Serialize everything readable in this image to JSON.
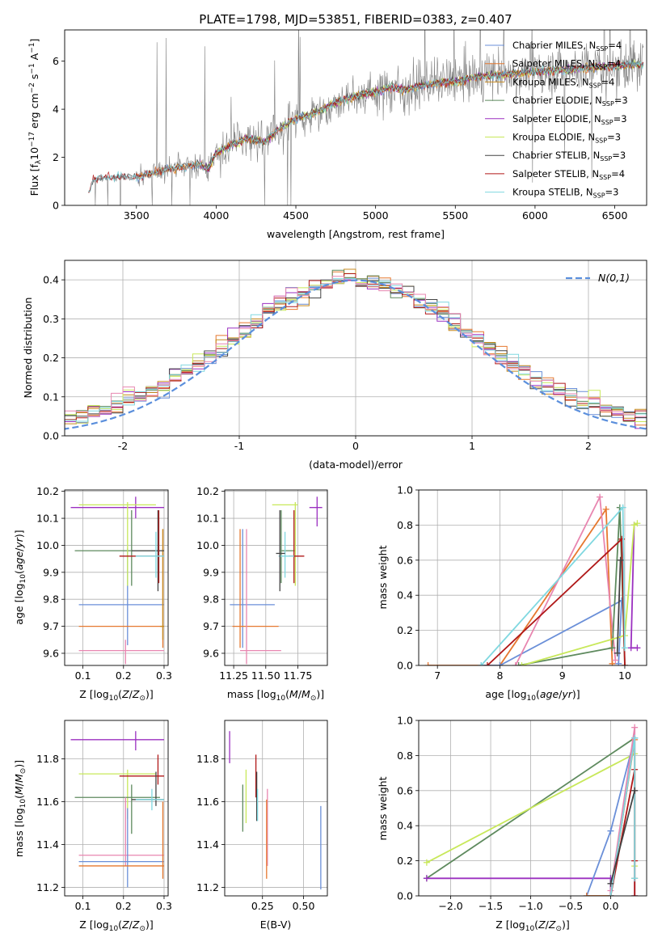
{
  "title": "PLATE=1798, MJD=53851, FIBERID=0383, z=0.407",
  "colors": {
    "chabrier_miles": "#6a8fd8",
    "salpeter_miles": "#e6782f",
    "kroupa_miles": "#c78a1f",
    "chabrier_elodie": "#5e8a5e",
    "salpeter_elodie": "#9b30c0",
    "kroupa_elodie": "#c8e85a",
    "chabrier_stelib": "#444444",
    "salpeter_stelib": "#b01818",
    "kroupa_stelib": "#80d8e0",
    "pink": "#e886b0",
    "data": "#808080",
    "normal": "#5b8fdc"
  },
  "legend_labels": {
    "chabrier_miles": "Chabrier MILES, N",
    "salpeter_miles": "Salpeter MILES, N",
    "kroupa_miles": "Kroupa MILES, N",
    "chabrier_elodie": "Chabrier ELODIE, N",
    "salpeter_elodie": "Salpeter ELODIE, N",
    "kroupa_elodie": "Kroupa ELODIE, N",
    "chabrier_stelib": "Chabrier STELIB, N",
    "salpeter_stelib": "Salpeter STELIB, N",
    "kroupa_stelib": "Kroupa STELIB, N",
    "sub": "SSP",
    "eq": "=",
    "n4": "4",
    "n3": "3",
    "normal": "N(0, 1)"
  },
  "chart_data": [
    {
      "id": "spectrum",
      "type": "line",
      "xlabel": "wavelength [Angstrom, rest frame]",
      "ylabel": "Flux [f",
      "ylabel_sub": "λ",
      "ylabel_rest": "10",
      "ylabel_exp": "−17",
      "ylabel_units": " erg cm",
      "ylabel_units2": " s",
      "ylabel_units3": " A",
      "xlim": [
        3050,
        6700
      ],
      "ylim": [
        0,
        7.3
      ],
      "xticks": [
        3500,
        4000,
        4500,
        5000,
        5500,
        6000,
        6500
      ],
      "yticks": [
        0,
        2,
        4,
        6
      ],
      "continuum": [
        [
          3200,
          0.5
        ],
        [
          3230,
          1.05
        ],
        [
          3300,
          1.15
        ],
        [
          3400,
          1.2
        ],
        [
          3500,
          1.15
        ],
        [
          3600,
          1.35
        ],
        [
          3700,
          1.5
        ],
        [
          3800,
          1.6
        ],
        [
          3900,
          1.7
        ],
        [
          3950,
          1.5
        ],
        [
          4000,
          2.2
        ],
        [
          4100,
          2.5
        ],
        [
          4200,
          2.8
        ],
        [
          4300,
          2.6
        ],
        [
          4400,
          3.2
        ],
        [
          4500,
          3.6
        ],
        [
          4600,
          3.8
        ],
        [
          4700,
          4.1
        ],
        [
          4800,
          4.4
        ],
        [
          4900,
          4.6
        ],
        [
          5000,
          4.7
        ],
        [
          5100,
          4.9
        ],
        [
          5200,
          4.8
        ],
        [
          5300,
          5.0
        ],
        [
          5400,
          5.1
        ],
        [
          5500,
          5.15
        ],
        [
          5600,
          5.3
        ],
        [
          5700,
          5.4
        ],
        [
          5800,
          5.45
        ],
        [
          5900,
          5.5
        ],
        [
          6000,
          5.55
        ],
        [
          6100,
          5.6
        ],
        [
          6200,
          5.65
        ],
        [
          6300,
          5.7
        ],
        [
          6400,
          5.75
        ],
        [
          6500,
          5.8
        ],
        [
          6600,
          5.85
        ]
      ]
    },
    {
      "id": "residuals",
      "type": "histogram",
      "xlabel": "(data-model)/error",
      "ylabel": "Normed distribution",
      "xlim": [
        -2.5,
        2.5
      ],
      "ylim": [
        0,
        0.45
      ],
      "xticks": [
        -2,
        -1,
        0,
        1,
        2
      ],
      "yticks": [
        0.0,
        0.1,
        0.2,
        0.3,
        0.4
      ],
      "bin_width": 0.1,
      "normal_label": "N(0,1)"
    },
    {
      "id": "Z_age",
      "type": "scatter",
      "xlabel": "Z [log",
      "ylabel": "age  [log",
      "xlim": [
        0.055,
        0.31
      ],
      "ylim": [
        9.555,
        10.205
      ],
      "xticks": [
        0.1,
        0.2,
        0.3
      ],
      "yticks": [
        9.6,
        9.7,
        9.8,
        9.9,
        10.0,
        10.1,
        10.2
      ],
      "points": [
        {
          "c": "chabrier_miles",
          "x": 0.21,
          "y": 9.78,
          "xl": 0.09,
          "xh": 0.3,
          "yl": 9.63,
          "yh": 9.99
        },
        {
          "c": "salpeter_miles",
          "x": 0.297,
          "y": 9.7,
          "xl": 0.09,
          "xh": 0.3,
          "yl": 9.62,
          "yh": 10.06
        },
        {
          "c": "kroupa_miles",
          "x": 0.297,
          "y": 9.7,
          "xl": 0.29,
          "xh": 0.3,
          "yl": 9.65,
          "yh": 10.06
        },
        {
          "c": "chabrier_elodie",
          "x": 0.22,
          "y": 9.98,
          "xl": 0.08,
          "xh": 0.29,
          "yl": 9.85,
          "yh": 10.13
        },
        {
          "c": "salpeter_elodie",
          "x": 0.23,
          "y": 10.14,
          "xl": 0.07,
          "xh": 0.3,
          "yl": 10.1,
          "yh": 10.18
        },
        {
          "c": "kroupa_elodie",
          "x": 0.21,
          "y": 10.15,
          "xl": 0.09,
          "xh": 0.28,
          "yl": 9.85,
          "yh": 10.16
        },
        {
          "c": "chabrier_stelib",
          "x": 0.285,
          "y": 9.98,
          "xl": 0.22,
          "xh": 0.3,
          "yl": 9.83,
          "yh": 10.13
        },
        {
          "c": "salpeter_stelib",
          "x": 0.287,
          "y": 9.96,
          "xl": 0.19,
          "xh": 0.3,
          "yl": 9.86,
          "yh": 10.13
        },
        {
          "c": "kroupa_stelib",
          "x": 0.28,
          "y": 9.96,
          "xl": 0.23,
          "xh": 0.3,
          "yl": 9.88,
          "yh": 10.05
        },
        {
          "c": "pink",
          "x": 0.205,
          "y": 9.61,
          "xl": 0.09,
          "xh": 0.3,
          "yl": 9.56,
          "yh": 9.65
        }
      ]
    },
    {
      "id": "mass_age",
      "type": "scatter",
      "xlabel": "mass [log",
      "ylabel": "",
      "xlim": [
        11.18,
        11.98
      ],
      "ylim": [
        9.555,
        10.205
      ],
      "xticks": [
        11.25,
        11.5,
        11.75
      ],
      "xtick_labels": [
        "11.25",
        "11.50",
        "11.75"
      ],
      "yticks": [
        9.6,
        9.7,
        9.8,
        9.9,
        10.0,
        10.1,
        10.2
      ],
      "points": [
        {
          "c": "chabrier_miles",
          "x": 11.32,
          "y": 9.78,
          "xl": 11.22,
          "xh": 11.57,
          "yl": 9.62,
          "yh": 10.06
        },
        {
          "c": "salpeter_miles",
          "x": 11.3,
          "y": 9.7,
          "xl": 11.24,
          "xh": 11.6,
          "yl": 9.62,
          "yh": 10.06
        },
        {
          "c": "chabrier_elodie",
          "x": 11.62,
          "y": 9.98,
          "xl": 11.62,
          "xh": 11.73,
          "yl": 9.86,
          "yh": 10.13
        },
        {
          "c": "salpeter_elodie",
          "x": 11.9,
          "y": 10.14,
          "xl": 11.84,
          "xh": 11.94,
          "yl": 10.07,
          "yh": 10.18
        },
        {
          "c": "kroupa_elodie",
          "x": 11.73,
          "y": 10.15,
          "xl": 11.55,
          "xh": 11.75,
          "yl": 9.85,
          "yh": 10.16
        },
        {
          "c": "salpeter_stelib",
          "x": 11.72,
          "y": 9.96,
          "xl": 11.68,
          "xh": 11.8,
          "yl": 9.86,
          "yh": 10.13
        },
        {
          "c": "kroupa_stelib",
          "x": 11.65,
          "y": 9.96,
          "xl": 11.6,
          "xh": 11.72,
          "yl": 9.88,
          "yh": 10.05
        },
        {
          "c": "chabrier_stelib",
          "x": 11.61,
          "y": 9.97,
          "xl": 11.58,
          "xh": 11.65,
          "yl": 9.83,
          "yh": 10.13
        },
        {
          "c": "pink",
          "x": 11.35,
          "y": 9.61,
          "xl": 11.3,
          "xh": 11.62,
          "yl": 9.56,
          "yh": 10.06
        }
      ]
    },
    {
      "id": "age_weight",
      "type": "line",
      "xlabel": "age  [log",
      "ylabel": "mass weight",
      "xlim": [
        6.7,
        10.35
      ],
      "ylim": [
        0,
        1.0
      ],
      "xticks": [
        7,
        8,
        9,
        10
      ],
      "yticks": [
        0.0,
        0.2,
        0.4,
        0.6,
        0.8,
        1.0
      ],
      "series": [
        {
          "c": "salpeter_miles",
          "x": [
            6.85,
            8.0,
            9.7,
            9.8
          ],
          "y": [
            0.0,
            0.0,
            0.89,
            0.01
          ]
        },
        {
          "c": "chabrier_miles",
          "x": [
            7.7,
            8.0,
            9.95,
            9.9
          ],
          "y": [
            0.0,
            0.0,
            0.37,
            0.01
          ]
        },
        {
          "c": "pink",
          "x": [
            8.25,
            9.6,
            9.85
          ],
          "y": [
            0.0,
            0.96,
            0.03
          ]
        },
        {
          "c": "chabrier_elodie",
          "x": [
            8.3,
            9.8,
            9.92,
            10.0
          ],
          "y": [
            0.0,
            0.1,
            0.9,
            0.0
          ]
        },
        {
          "c": "salpeter_elodie",
          "x": [
            10.15,
            10.1,
            10.2
          ],
          "y": [
            0.8,
            0.1,
            0.1
          ]
        },
        {
          "c": "kroupa_elodie",
          "x": [
            8.35,
            10.0,
            10.15,
            10.2
          ],
          "y": [
            0.0,
            0.17,
            0.8,
            0.81
          ]
        },
        {
          "c": "salpeter_stelib",
          "x": [
            7.8,
            9.95,
            10.0
          ],
          "y": [
            0.0,
            0.72,
            0.0
          ]
        },
        {
          "c": "kroupa_stelib",
          "x": [
            7.7,
            9.97,
            10.0
          ],
          "y": [
            0.0,
            0.9,
            0.1
          ]
        },
        {
          "c": "chabrier_stelib",
          "x": [
            9.88,
            9.93
          ],
          "y": [
            0.07,
            0.6
          ]
        }
      ]
    },
    {
      "id": "Z_mass",
      "type": "scatter",
      "xlabel": "Z [log",
      "ylabel": "mass [log",
      "xlim": [
        0.055,
        0.31
      ],
      "ylim": [
        11.16,
        11.98
      ],
      "xticks": [
        0.1,
        0.2,
        0.3
      ],
      "yticks": [
        11.2,
        11.4,
        11.6,
        11.8
      ],
      "points": [
        {
          "c": "salpeter_elodie",
          "x": 0.23,
          "y": 11.89,
          "xl": 0.07,
          "xh": 0.3,
          "yl": 11.84,
          "yh": 11.93
        },
        {
          "c": "kroupa_elodie",
          "x": 0.21,
          "y": 11.73,
          "xl": 0.09,
          "xh": 0.28,
          "yl": 11.52,
          "yh": 11.75
        },
        {
          "c": "salpeter_stelib",
          "x": 0.285,
          "y": 11.72,
          "xl": 0.19,
          "xh": 0.3,
          "yl": 11.68,
          "yh": 11.82
        },
        {
          "c": "chabrier_elodie",
          "x": 0.22,
          "y": 11.62,
          "xl": 0.08,
          "xh": 0.29,
          "yl": 11.45,
          "yh": 11.68
        },
        {
          "c": "chabrier_stelib",
          "x": 0.28,
          "y": 11.61,
          "xl": 0.22,
          "xh": 0.3,
          "yl": 11.58,
          "yh": 11.74
        },
        {
          "c": "kroupa_stelib",
          "x": 0.27,
          "y": 11.61,
          "xl": 0.23,
          "xh": 0.3,
          "yl": 11.56,
          "yh": 11.66
        },
        {
          "c": "pink",
          "x": 0.205,
          "y": 11.35,
          "xl": 0.09,
          "xh": 0.3,
          "yl": 11.3,
          "yh": 11.62
        },
        {
          "c": "chabrier_miles",
          "x": 0.21,
          "y": 11.32,
          "xl": 0.09,
          "xh": 0.3,
          "yl": 11.2,
          "yh": 11.57
        },
        {
          "c": "salpeter_miles",
          "x": 0.297,
          "y": 11.3,
          "xl": 0.09,
          "xh": 0.3,
          "yl": 11.24,
          "yh": 11.6
        }
      ]
    },
    {
      "id": "ebv_mass",
      "type": "scatter",
      "xlabel": "E(B-V)",
      "ylabel": "",
      "xlim": [
        0.02,
        0.645
      ],
      "ylim": [
        11.16,
        11.98
      ],
      "xticks": [
        0.25,
        0.5
      ],
      "xtick_labels": [
        "0.25",
        "0.50"
      ],
      "yticks": [
        11.2,
        11.4,
        11.6,
        11.8
      ],
      "points": [
        {
          "c": "salpeter_elodie",
          "x": 0.05,
          "y": 11.89,
          "yl": 11.78,
          "yh": 11.93
        },
        {
          "c": "chabrier_elodie",
          "x": 0.13,
          "y": 11.62,
          "yl": 11.46,
          "yh": 11.68
        },
        {
          "c": "kroupa_elodie",
          "x": 0.15,
          "y": 11.73,
          "yl": 11.5,
          "yh": 11.75
        },
        {
          "c": "salpeter_stelib",
          "x": 0.21,
          "y": 11.72,
          "yl": 11.62,
          "yh": 11.82
        },
        {
          "c": "chabrier_stelib",
          "x": 0.215,
          "y": 11.61,
          "yl": 11.51,
          "yh": 11.74
        },
        {
          "c": "kroupa_stelib",
          "x": 0.22,
          "y": 11.61,
          "yl": 11.51,
          "yh": 11.66
        },
        {
          "c": "pink",
          "x": 0.28,
          "y": 11.35,
          "yl": 11.3,
          "yh": 11.66
        },
        {
          "c": "salpeter_miles",
          "x": 0.275,
          "y": 11.3,
          "yl": 11.24,
          "yh": 11.61
        },
        {
          "c": "chabrier_miles",
          "x": 0.605,
          "y": 11.32,
          "yl": 11.19,
          "yh": 11.58
        }
      ]
    },
    {
      "id": "Z_weight",
      "type": "line",
      "xlabel": "Z [log",
      "ylabel": "mass weight",
      "xlim": [
        -2.4,
        0.45
      ],
      "ylim": [
        0,
        1.0
      ],
      "xticks": [
        -2.0,
        -1.5,
        -1.0,
        -0.5,
        0.0
      ],
      "xtick_labels": [
        "−2.0",
        "−1.5",
        "−1.0",
        "−0.5",
        "0.0"
      ],
      "yticks": [
        0.0,
        0.2,
        0.4,
        0.6,
        0.8,
        1.0
      ],
      "series": [
        {
          "c": "chabrier_elodie",
          "x": [
            -2.3,
            0.3,
            0.0,
            0.0
          ],
          "y": [
            0.1,
            0.9,
            0.0,
            0.1
          ]
        },
        {
          "c": "kroupa_elodie",
          "x": [
            -2.3,
            0.3,
            0.3
          ],
          "y": [
            0.19,
            0.81,
            0.17
          ]
        },
        {
          "c": "salpeter_elodie",
          "x": [
            -2.3,
            0.0,
            0.0
          ],
          "y": [
            0.1,
            0.1,
            0.0
          ]
        },
        {
          "c": "chabrier_miles",
          "x": [
            -0.3,
            0.0,
            0.3,
            0.3
          ],
          "y": [
            0.0,
            0.37,
            0.9,
            0.0
          ]
        },
        {
          "c": "salpeter_miles",
          "x": [
            -0.3,
            0.0,
            0.3,
            0.3
          ],
          "y": [
            0.0,
            0.0,
            0.89,
            0.1
          ]
        },
        {
          "c": "pink",
          "x": [
            0.0,
            0.3,
            0.3
          ],
          "y": [
            0.03,
            0.96,
            0.0
          ]
        },
        {
          "c": "salpeter_stelib",
          "x": [
            0.0,
            0.3,
            0.3,
            0.3
          ],
          "y": [
            0.0,
            0.72,
            0.0,
            0.2
          ]
        },
        {
          "c": "kroupa_stelib",
          "x": [
            0.0,
            0.3,
            0.3
          ],
          "y": [
            0.0,
            0.9,
            0.1
          ]
        },
        {
          "c": "chabrier_stelib",
          "x": [
            0.0,
            0.3
          ],
          "y": [
            0.07,
            0.6
          ]
        }
      ]
    }
  ]
}
